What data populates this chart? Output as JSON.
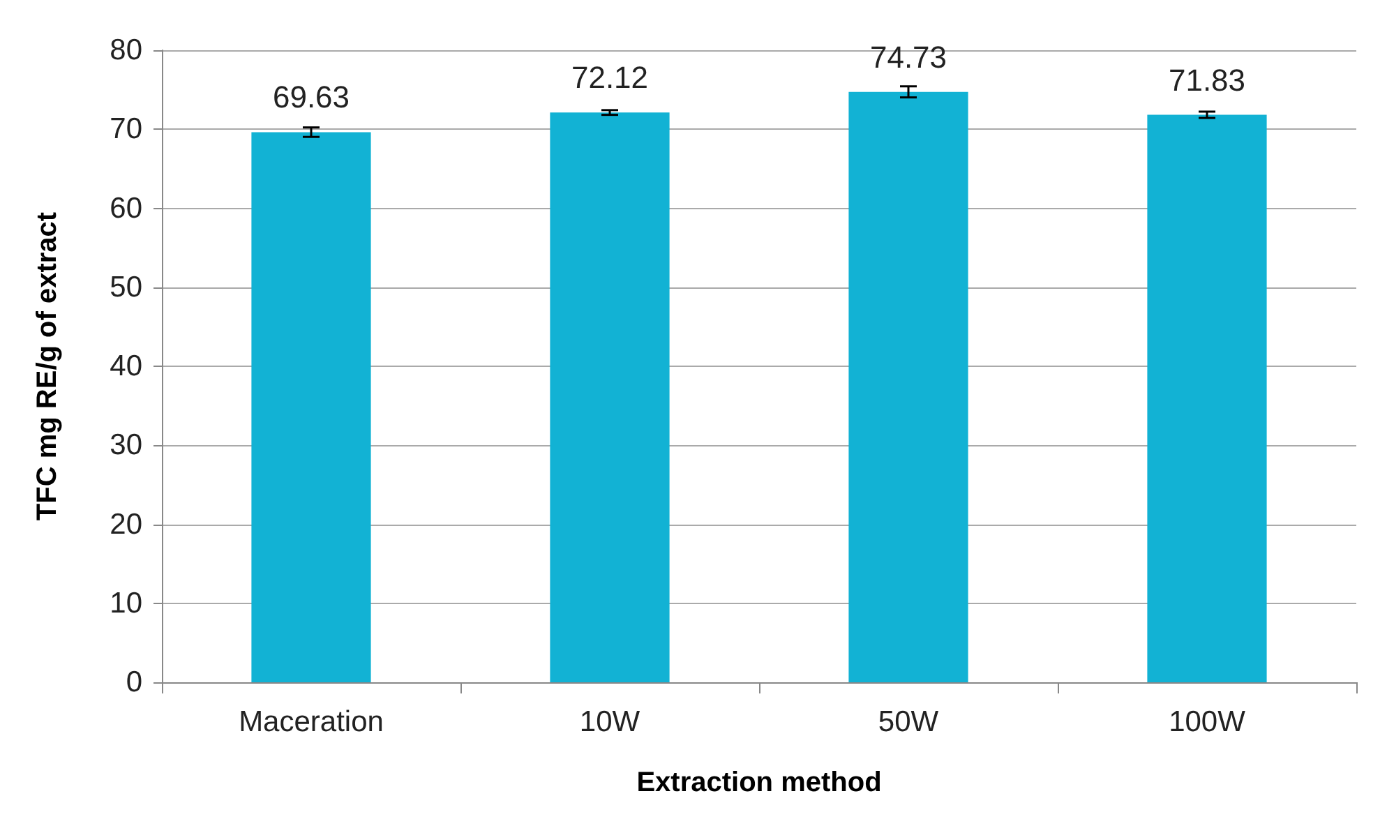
{
  "chart_data": {
    "type": "bar",
    "xlabel": "Extraction method",
    "ylabel": "TFC mg RE/g of extract",
    "categories": [
      "Maceration",
      "10W",
      "50W",
      "100W"
    ],
    "values": [
      69.63,
      72.12,
      74.73,
      71.83
    ],
    "errors": [
      0.6,
      0.3,
      0.7,
      0.4
    ],
    "color": "#12b2d4",
    "ylim": [
      0,
      80
    ],
    "yticks": [
      0,
      10,
      20,
      30,
      40,
      50,
      60,
      70,
      80
    ],
    "grid": "y",
    "data_labels": true
  }
}
